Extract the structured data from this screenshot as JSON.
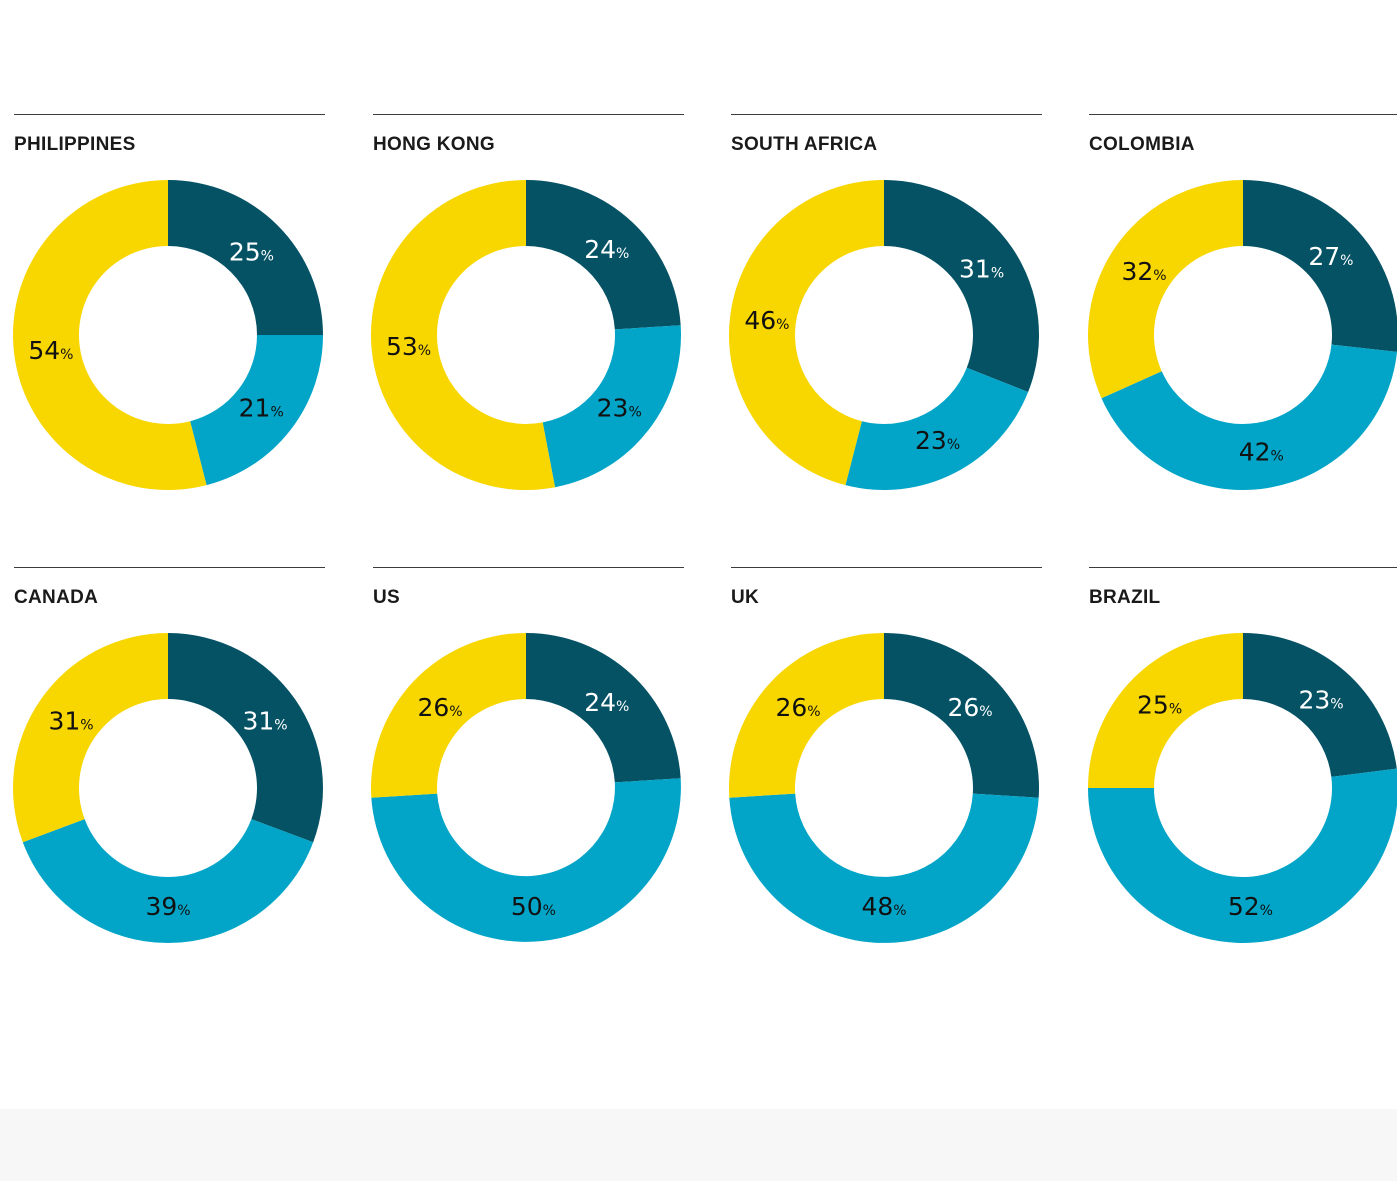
{
  "colors": {
    "dark_teal": "#055265",
    "light_blue": "#02a5c8",
    "yellow": "#f8d600",
    "background": "#ffffff",
    "footer_band": "#f6f7f6"
  },
  "percent_sign": "%",
  "chart_data": [
    {
      "type": "pie",
      "title": "PHILIPPINES",
      "series": [
        {
          "color": "#055265",
          "value": 25
        },
        {
          "color": "#02a5c8",
          "value": 21
        },
        {
          "color": "#f8d600",
          "value": 54
        }
      ]
    },
    {
      "type": "pie",
      "title": "HONG KONG",
      "series": [
        {
          "color": "#055265",
          "value": 24
        },
        {
          "color": "#02a5c8",
          "value": 23
        },
        {
          "color": "#f8d600",
          "value": 53
        }
      ]
    },
    {
      "type": "pie",
      "title": "SOUTH AFRICA",
      "series": [
        {
          "color": "#055265",
          "value": 31
        },
        {
          "color": "#02a5c8",
          "value": 23
        },
        {
          "color": "#f8d600",
          "value": 46
        }
      ]
    },
    {
      "type": "pie",
      "title": "COLOMBIA",
      "series": [
        {
          "color": "#055265",
          "value": 27
        },
        {
          "color": "#02a5c8",
          "value": 42
        },
        {
          "color": "#f8d600",
          "value": 32
        }
      ]
    },
    {
      "type": "pie",
      "title": "CANADA",
      "series": [
        {
          "color": "#055265",
          "value": 31
        },
        {
          "color": "#02a5c8",
          "value": 39
        },
        {
          "color": "#f8d600",
          "value": 31
        }
      ]
    },
    {
      "type": "pie",
      "title": "US",
      "series": [
        {
          "color": "#055265",
          "value": 24
        },
        {
          "color": "#02a5c8",
          "value": 50
        },
        {
          "color": "#f8d600",
          "value": 26
        }
      ]
    },
    {
      "type": "pie",
      "title": "UK",
      "series": [
        {
          "color": "#055265",
          "value": 26
        },
        {
          "color": "#02a5c8",
          "value": 48
        },
        {
          "color": "#f8d600",
          "value": 26
        }
      ]
    },
    {
      "type": "pie",
      "title": "BRAZIL",
      "series": [
        {
          "color": "#055265",
          "value": 23
        },
        {
          "color": "#02a5c8",
          "value": 52
        },
        {
          "color": "#f8d600",
          "value": 25
        }
      ]
    }
  ]
}
